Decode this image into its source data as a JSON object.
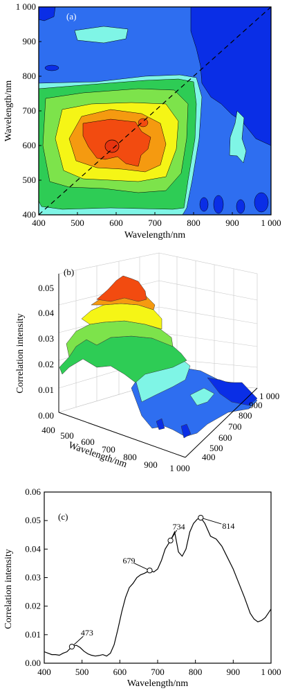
{
  "chart_data": [
    {
      "type": "heatmap",
      "panel_label": "(a)",
      "xlabel": "Wavelength/nm",
      "ylabel": "Wavelength/nm",
      "xlim": [
        400,
        1000
      ],
      "ylim": [
        400,
        1000
      ],
      "x_ticks": [
        "400",
        "500",
        "600",
        "700",
        "800",
        "900",
        "1 000"
      ],
      "y_ticks": [
        "400",
        "500",
        "600",
        "700",
        "800",
        "900",
        "1 000"
      ],
      "diagonal": "dashed",
      "colors": [
        "#0a2ee6",
        "#2e6ef0",
        "#7ff5e6",
        "#2ecc55",
        "#7de34b",
        "#f5f516",
        "#f59a10",
        "#f24b10"
      ]
    },
    {
      "type": "surface",
      "panel_label": "(b)",
      "xlabel": "Wavelength/nm",
      "zlabel": "Correlation intensity",
      "x_ticks": [
        "400",
        "500",
        "600",
        "700",
        "800",
        "900",
        "1 000"
      ],
      "y_ticks": [
        "400",
        "500",
        "600",
        "700",
        "800",
        "900",
        "1 000"
      ],
      "z_ticks": [
        "0.00",
        "0.01",
        "0.02",
        "0.03",
        "0.04",
        "0.05"
      ],
      "zlim": [
        0,
        0.055
      ]
    },
    {
      "type": "line",
      "panel_label": "(c)",
      "xlabel": "Wavelength/nm",
      "ylabel": "Correlation intensity",
      "xlim": [
        400,
        1000
      ],
      "ylim": [
        0,
        0.06
      ],
      "x_ticks": [
        "400",
        "500",
        "600",
        "700",
        "800",
        "900",
        "1 000"
      ],
      "y_ticks": [
        "0.00",
        "0.01",
        "0.02",
        "0.03",
        "0.04",
        "0.05",
        "0.06"
      ],
      "x": [
        400,
        410,
        420,
        430,
        440,
        450,
        460,
        473,
        485,
        495,
        505,
        515,
        525,
        535,
        545,
        555,
        565,
        575,
        585,
        595,
        605,
        615,
        625,
        635,
        645,
        655,
        665,
        679,
        690,
        700,
        710,
        720,
        734,
        745,
        755,
        765,
        775,
        785,
        795,
        805,
        814,
        825,
        840,
        855,
        870,
        885,
        900,
        915,
        930,
        945,
        955,
        965,
        975,
        985,
        995,
        1000
      ],
      "y": [
        0.004,
        0.0035,
        0.003,
        0.003,
        0.0028,
        0.0035,
        0.004,
        0.0058,
        0.0063,
        0.0055,
        0.0042,
        0.0033,
        0.0028,
        0.0025,
        0.0027,
        0.003,
        0.0025,
        0.0035,
        0.0065,
        0.012,
        0.018,
        0.023,
        0.0265,
        0.028,
        0.03,
        0.031,
        0.0315,
        0.0325,
        0.032,
        0.033,
        0.036,
        0.04,
        0.043,
        0.046,
        0.039,
        0.0375,
        0.04,
        0.046,
        0.049,
        0.0505,
        0.051,
        0.049,
        0.0445,
        0.0435,
        0.041,
        0.037,
        0.033,
        0.028,
        0.023,
        0.0175,
        0.0155,
        0.0145,
        0.015,
        0.016,
        0.018,
        0.019
      ],
      "annotations": [
        {
          "label": "473",
          "x": 473,
          "y": 0.0058
        },
        {
          "label": "679",
          "x": 679,
          "y": 0.0325
        },
        {
          "label": "734",
          "x": 734,
          "y": 0.043
        },
        {
          "label": "814",
          "x": 814,
          "y": 0.051
        }
      ]
    }
  ]
}
